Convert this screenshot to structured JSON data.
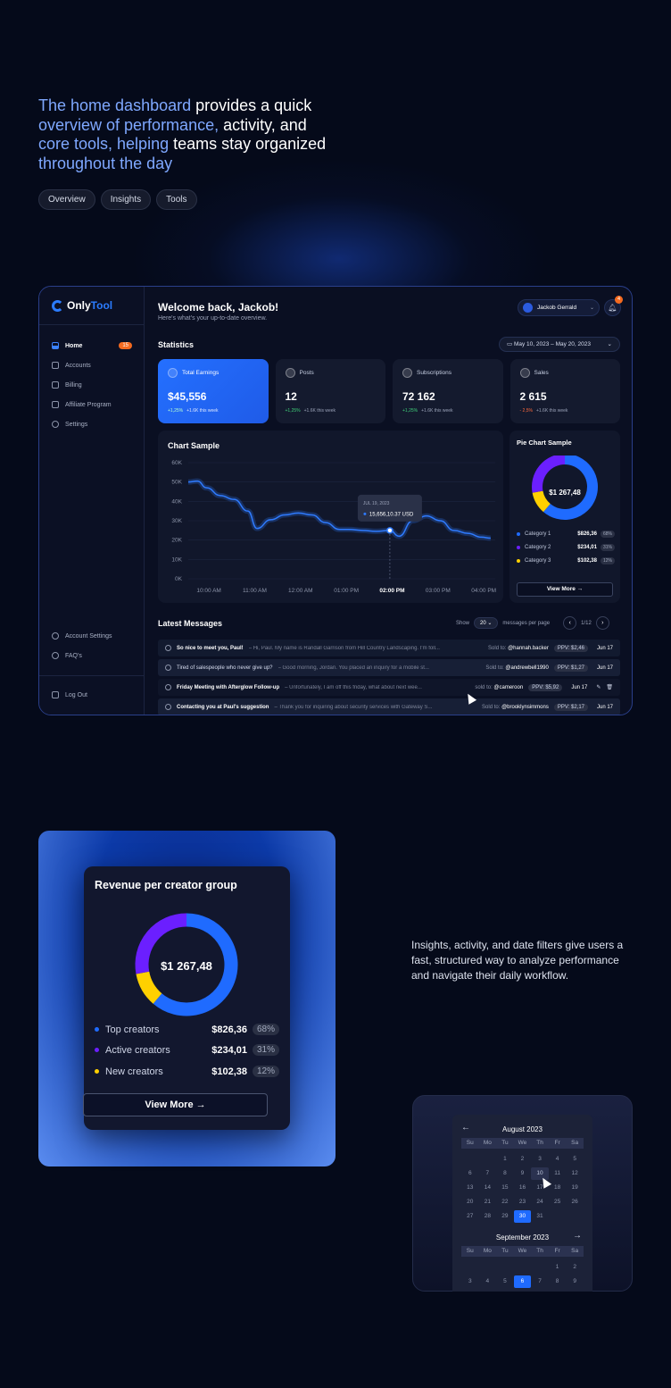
{
  "hero": {
    "line1_hl": "The home dashboard",
    "line1_rest": " provides a quick",
    "line2_hl": "overview of performance,",
    "line2_rest": " activity, and",
    "line3_hl": "core tools, helping",
    "line3_rest": " teams stay organized",
    "line4_hl": "throughout the day",
    "chips": [
      "Overview",
      "Insights",
      "Tools"
    ]
  },
  "sidebar": {
    "logo_only": "Only",
    "logo_tool": "Tool",
    "items": [
      {
        "label": "Home",
        "badge": "15"
      },
      {
        "label": "Accounts"
      },
      {
        "label": "Billing"
      },
      {
        "label": "Affiliate Program"
      },
      {
        "label": "Settings"
      }
    ],
    "bottom": [
      "Account Settings",
      "FAQ's"
    ],
    "logout": "Log Out"
  },
  "header": {
    "welcome": "Welcome back, Jackob!",
    "subtitle": "Here's what's your up-to-date overview.",
    "user": "Jackob Gerrald",
    "notifications": "4"
  },
  "statistics": {
    "title": "Statistics",
    "date_range": "May 10, 2023 – May 20, 2023",
    "cards": [
      {
        "label": "Total Earnings",
        "value": "$45,556",
        "change": "+1,25%",
        "week": "+1.6K this week",
        "dir": "up"
      },
      {
        "label": "Posts",
        "value": "12",
        "change": "+1,25%",
        "week": "+1.6K this week",
        "dir": "up"
      },
      {
        "label": "Subscriptions",
        "value": "72 162",
        "change": "+1,25%",
        "week": "+1.6K this week",
        "dir": "up"
      },
      {
        "label": "Sales",
        "value": "2 615",
        "change": "- 2,5%",
        "week": "+1.6K this week",
        "dir": "down"
      }
    ]
  },
  "line_chart": {
    "title": "Chart Sample",
    "tooltip_date": "JUL 19, 2023",
    "tooltip_value": "15,656,10.37 USD",
    "series_color": "#2f7bff"
  },
  "pie_small": {
    "title": "Pie Chart Sample",
    "center": "$1 267,48",
    "legend": [
      {
        "label": "Category 1",
        "value": "$826,36",
        "pct": "68%",
        "color": "#1f6bff"
      },
      {
        "label": "Category 2",
        "value": "$234,01",
        "pct": "31%",
        "color": "#6b1fff"
      },
      {
        "label": "Category 3",
        "value": "$102,38",
        "pct": "12%",
        "color": "#ffd000"
      }
    ],
    "button": "View More"
  },
  "messages": {
    "title": "Latest Messages",
    "show": "Show",
    "per_page_value": "20",
    "per_page_label": "messages per page",
    "page": "1/12",
    "rows": [
      {
        "title": "So nice to meet you, Paul!",
        "preview": "– Hi, Paul. My name is Randall Garrison from Hill Country Landscaping. I'm foll...",
        "sold": "Sold to:",
        "buyer": "@hannah.backer",
        "ppv": "PPV: $2,46",
        "date": "Jun 17"
      },
      {
        "title": "Tired of salespeople who never give up?",
        "preview": "– Good morning, Jordan. You placed an inquiry for a mobile st...",
        "sold": "Sold to:",
        "buyer": "@andrewbell1990",
        "ppv": "PPV: $1,27",
        "date": "Jun 17"
      },
      {
        "title": "Friday Meeting with Afterglow Follow-up",
        "preview": "– Unfortunately, I am off this friday, what about next wee...",
        "sold": "sold to:",
        "buyer": "@cameroon",
        "ppv": "PPV: $5,92",
        "date": "Jun 17"
      },
      {
        "title": "Contacting you at Paul's suggestion",
        "preview": "– Thank you for inquiring about security services with Gateway S...",
        "sold": "Sold to:",
        "buyer": "@brooklynsimmons",
        "ppv": "PPV: $2,17",
        "date": "Jun 17"
      }
    ]
  },
  "revenue": {
    "title": "Revenue per creator group",
    "center": "$1 267,48",
    "legend": [
      {
        "label": "Top creators",
        "value": "$826,36",
        "pct": "68%",
        "color": "#1f6bff"
      },
      {
        "label": "Active creators",
        "value": "$234,01",
        "pct": "31%",
        "color": "#6b1fff"
      },
      {
        "label": "New creators",
        "value": "$102,38",
        "pct": "12%",
        "color": "#ffd000"
      }
    ],
    "button": "View More"
  },
  "insights_text": "Insights, activity, and date filters give users a fast, structured way to analyze performance and navigate their daily workflow.",
  "calendar": {
    "weekdays": [
      "Su",
      "Mo",
      "Tu",
      "We",
      "Th",
      "Fr",
      "Sa"
    ],
    "month1": "August 2023",
    "month1_rows": [
      [
        "",
        "",
        "1",
        "2",
        "3",
        "4",
        "5"
      ],
      [
        "6",
        "7",
        "8",
        "9",
        "10",
        "11",
        "12"
      ],
      [
        "13",
        "14",
        "15",
        "16",
        "17",
        "18",
        "19"
      ],
      [
        "20",
        "21",
        "22",
        "23",
        "24",
        "25",
        "26"
      ],
      [
        "27",
        "28",
        "29",
        "30",
        "31",
        "",
        ""
      ]
    ],
    "month2": "September 2023",
    "month2_rows": [
      [
        "",
        "",
        "",
        "",
        "",
        "1",
        "2"
      ],
      [
        "3",
        "4",
        "5",
        "6",
        "7",
        "8",
        "9"
      ]
    ],
    "selected1": "30",
    "hover1": "10",
    "selected2": "6"
  },
  "chart_data": {
    "type": "line",
    "title": "Chart Sample",
    "x_ticks": [
      "10:00 AM",
      "11:00 AM",
      "12:00 AM",
      "01:00 PM",
      "02:00 PM",
      "03:00 PM",
      "04:00 PM"
    ],
    "y_ticks": [
      "0K",
      "10K",
      "20K",
      "30K",
      "40K",
      "50K",
      "60K"
    ],
    "ylim": [
      0,
      60000
    ],
    "x": [
      9.6,
      9.8,
      10.0,
      10.3,
      10.6,
      10.9,
      11.1,
      11.4,
      11.7,
      12.0,
      12.3,
      12.6,
      12.9,
      13.1,
      13.4,
      13.7,
      14.0,
      14.2,
      14.5,
      14.8,
      15.1,
      15.4,
      15.7,
      16.0,
      16.2
    ],
    "y": [
      50000,
      50500,
      47000,
      43000,
      41000,
      35000,
      26000,
      30500,
      33000,
      34000,
      33000,
      29000,
      25500,
      25500,
      25000,
      24500,
      25000,
      22000,
      30000,
      32500,
      30000,
      25000,
      23500,
      21500,
      21000
    ],
    "highlight_x": 14.0,
    "highlight_label": "02:00 PM",
    "grid": true
  }
}
